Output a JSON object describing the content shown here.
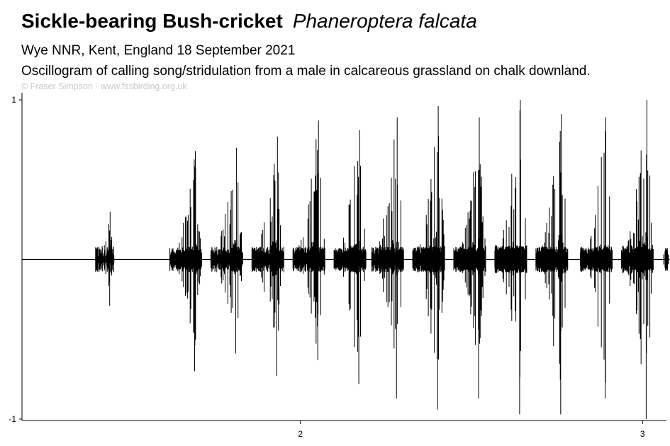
{
  "header": {
    "title_common": "Sickle-bearing Bush-cricket",
    "title_scientific": "Phaneroptera falcata",
    "location_date": "Wye NNR, Kent, England  18 September 2021",
    "description": "Oscillogram of calling song/stridulation from a male  in calcareous grassland on chalk downland.",
    "credit": "© Fraser Simpson  ·  www.fssbirding.org.uk"
  },
  "chart_data": {
    "type": "line",
    "title": "Sickle-bearing Bush-cricket  Phaneroptera falcata",
    "xlabel": "",
    "ylabel": "",
    "xlim": [
      1.186,
      3.07
    ],
    "ylim": [
      -1,
      1
    ],
    "x_ticks": [
      2,
      3
    ],
    "x_tick_labels": [
      "2",
      "3"
    ],
    "y_ticks": [
      1,
      -1
    ],
    "y_tick_labels": [
      "1",
      "-1"
    ],
    "grid": false,
    "legend": "none",
    "line_color": "#000000",
    "baseline": 0,
    "series": [
      {
        "bursts": [
          {
            "x": 1.43,
            "peak_pos": 0.3,
            "peak_neg": -0.29
          },
          {
            "x": 1.67,
            "peak_pos": 0.68,
            "peak_neg": -0.7
          },
          {
            "x": 1.79,
            "peak_pos": 0.7,
            "peak_neg": -0.59
          },
          {
            "x": 1.91,
            "peak_pos": 0.77,
            "peak_neg": -0.73
          },
          {
            "x": 2.03,
            "peak_pos": 0.87,
            "peak_neg": -0.63
          },
          {
            "x": 2.15,
            "peak_pos": 0.81,
            "peak_neg": -0.78
          },
          {
            "x": 2.26,
            "peak_pos": 0.89,
            "peak_neg": -0.87
          },
          {
            "x": 2.38,
            "peak_pos": 0.96,
            "peak_neg": -0.94
          },
          {
            "x": 2.5,
            "peak_pos": 0.89,
            "peak_neg": -0.87
          },
          {
            "x": 2.62,
            "peak_pos": 1.0,
            "peak_neg": -0.97
          },
          {
            "x": 2.74,
            "peak_pos": 0.91,
            "peak_neg": -0.97
          },
          {
            "x": 2.87,
            "peak_pos": 0.89,
            "peak_neg": -0.87
          },
          {
            "x": 2.99,
            "peak_pos": 1.0,
            "peak_neg": -1.0
          },
          {
            "x": 3.07,
            "peak_pos": 0.06,
            "peak_neg": -0.06
          }
        ]
      }
    ]
  }
}
